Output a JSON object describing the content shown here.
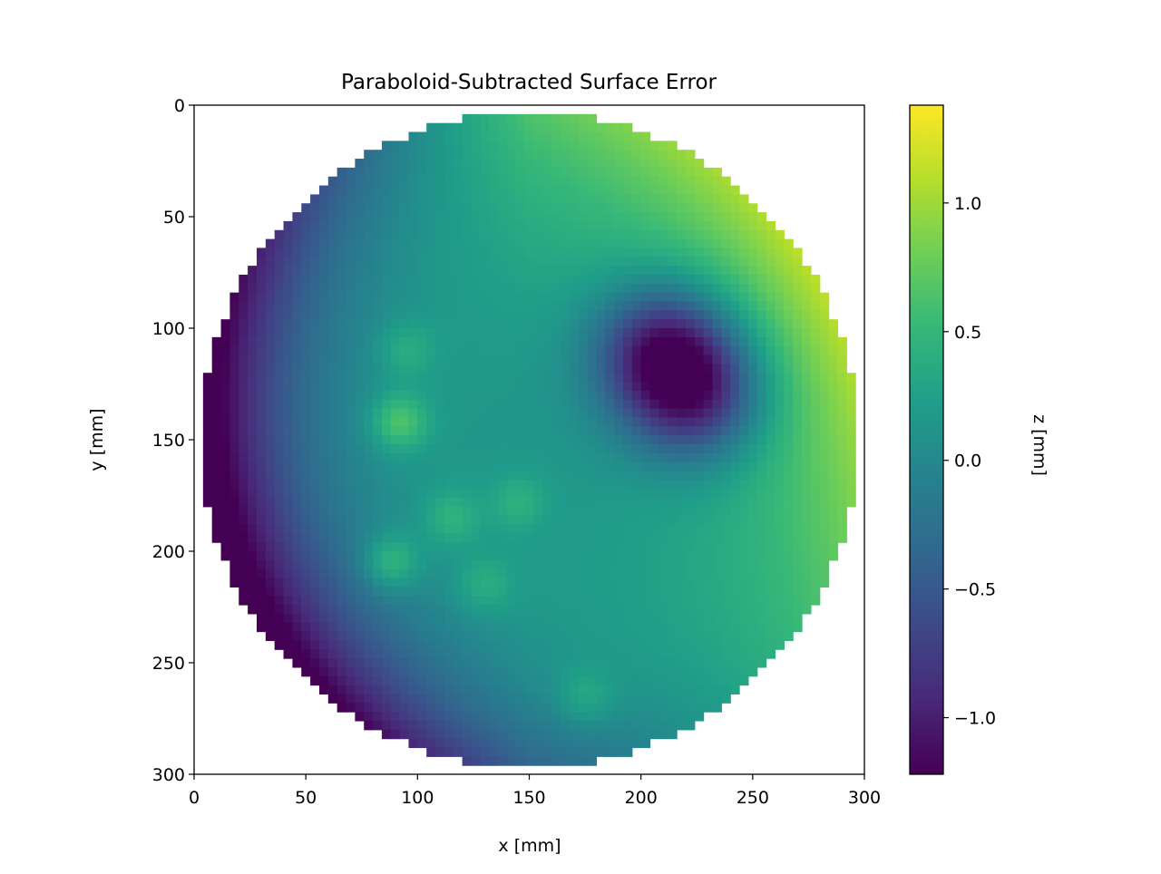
{
  "chart_data": {
    "type": "heatmap",
    "title": "Paraboloid-Subtracted Surface Error",
    "xlabel": "x [mm]",
    "ylabel": "y [mm]",
    "xlim": [
      0,
      300
    ],
    "ylim": [
      300,
      0
    ],
    "y_axis_inverted": true,
    "x_ticks": [
      0,
      50,
      100,
      150,
      200,
      250,
      300
    ],
    "y_ticks": [
      0,
      50,
      100,
      150,
      200,
      250,
      300
    ],
    "colormap": "viridis",
    "colorbar": {
      "label": "z [mm]",
      "range": [
        -1.22,
        1.38
      ],
      "ticks": [
        1.0,
        0.5,
        0.0,
        -0.5,
        -1.0
      ],
      "tick_labels": [
        "1.0",
        "0.5",
        "0.0",
        "−0.5",
        "−1.0"
      ]
    },
    "grid": false,
    "mask": "circular",
    "mask_center": [
      150,
      150
    ],
    "mask_radius": 147,
    "features": [
      {
        "x": 210,
        "y": 110,
        "z": -1.1
      },
      {
        "x": 225,
        "y": 130,
        "z": -0.95
      },
      {
        "x": 92,
        "y": 142,
        "z": 0.85
      },
      {
        "x": 88,
        "y": 205,
        "z": 0.8
      },
      {
        "x": 115,
        "y": 185,
        "z": 0.6
      },
      {
        "x": 95,
        "y": 110,
        "z": 0.55
      },
      {
        "x": 145,
        "y": 178,
        "z": 0.55
      },
      {
        "x": 130,
        "y": 215,
        "z": 0.55
      },
      {
        "x": 175,
        "y": 265,
        "z": 0.55
      }
    ]
  },
  "colors": {
    "viridis": [
      "#440154",
      "#482878",
      "#3e4989",
      "#31688e",
      "#26828e",
      "#1f9e89",
      "#35b779",
      "#6ece58",
      "#b5de2b",
      "#fde725"
    ]
  }
}
